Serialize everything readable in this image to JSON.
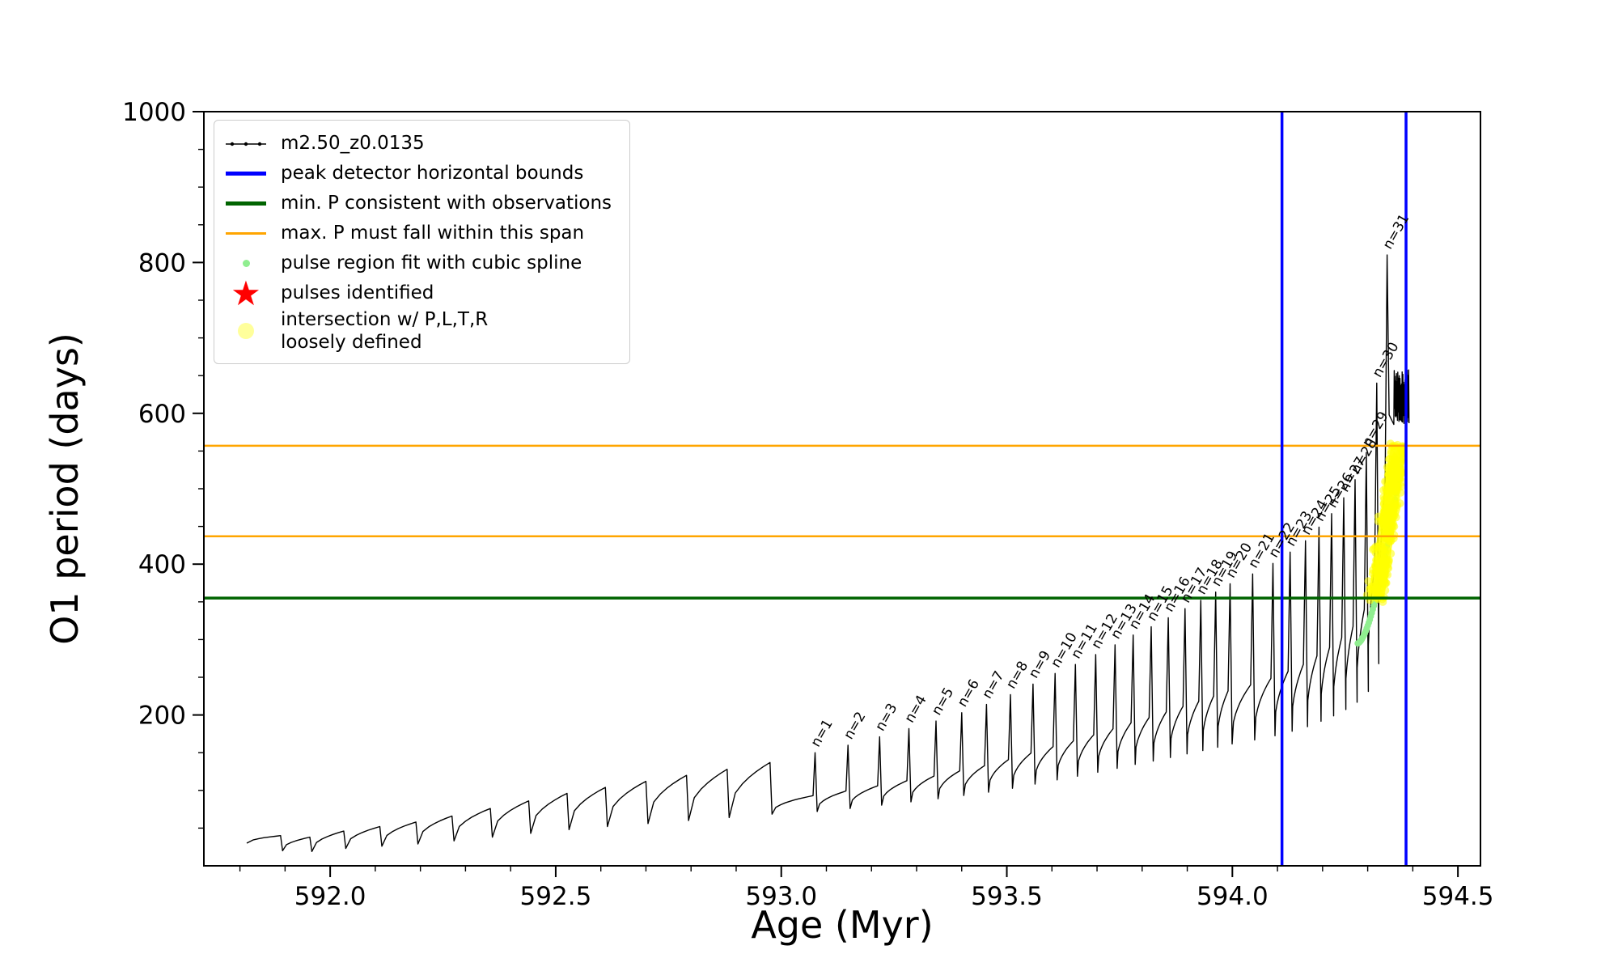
{
  "chart_data": {
    "type": "line",
    "title": "",
    "xlabel": "Age (Myr)",
    "ylabel": "O1 period (days)",
    "xlim": [
      591.72,
      594.55
    ],
    "ylim": [
      0,
      1000
    ],
    "grid": false,
    "xticks": {
      "values": [
        592.0,
        592.5,
        593.0,
        593.5,
        594.0,
        594.5
      ],
      "labels": [
        "592.0",
        "592.5",
        "593.0",
        "593.5",
        "594.0",
        "594.5"
      ],
      "minor_step": 0.1
    },
    "yticks": {
      "values": [
        200,
        400,
        600,
        800,
        1000
      ],
      "labels": [
        "200",
        "400",
        "600",
        "800",
        "1000"
      ],
      "minor_step": 50
    },
    "series": [
      {
        "name": "m2.50_z0.0135",
        "color": "#000000",
        "start": {
          "x": 591.815,
          "y": 30
        },
        "pre_pulses": [
          {
            "x": 591.89,
            "peak": 40
          },
          {
            "x": 591.955,
            "peak": 38
          },
          {
            "x": 592.03,
            "peak": 46
          },
          {
            "x": 592.11,
            "peak": 52
          },
          {
            "x": 592.19,
            "peak": 58
          },
          {
            "x": 592.27,
            "peak": 66
          },
          {
            "x": 592.355,
            "peak": 76
          },
          {
            "x": 592.44,
            "peak": 86
          },
          {
            "x": 592.525,
            "peak": 96
          },
          {
            "x": 592.61,
            "peak": 104
          },
          {
            "x": 592.7,
            "peak": 112
          },
          {
            "x": 592.79,
            "peak": 120
          },
          {
            "x": 592.88,
            "peak": 128
          },
          {
            "x": 592.975,
            "peak": 137
          }
        ],
        "pulses": [
          {
            "label": "n=1",
            "x": 593.075,
            "peak": 150
          },
          {
            "label": "n=2",
            "x": 593.148,
            "peak": 160
          },
          {
            "label": "n=3",
            "x": 593.218,
            "peak": 171
          },
          {
            "label": "n=4",
            "x": 593.283,
            "peak": 182
          },
          {
            "label": "n=5",
            "x": 593.343,
            "peak": 192
          },
          {
            "label": "n=6",
            "x": 593.4,
            "peak": 203
          },
          {
            "label": "n=7",
            "x": 593.455,
            "peak": 214
          },
          {
            "label": "n=8",
            "x": 593.508,
            "peak": 227
          },
          {
            "label": "n=9",
            "x": 593.558,
            "peak": 241
          },
          {
            "label": "n=10",
            "x": 593.607,
            "peak": 255
          },
          {
            "label": "n=11",
            "x": 593.652,
            "peak": 267
          },
          {
            "label": "n=12",
            "x": 593.697,
            "peak": 280
          },
          {
            "label": "n=13",
            "x": 593.74,
            "peak": 293
          },
          {
            "label": "n=14",
            "x": 593.78,
            "peak": 306
          },
          {
            "label": "n=15",
            "x": 593.82,
            "peak": 317
          },
          {
            "label": "n=16",
            "x": 593.858,
            "peak": 329
          },
          {
            "label": "n=17",
            "x": 593.895,
            "peak": 341
          },
          {
            "label": "n=18",
            "x": 593.93,
            "peak": 352
          },
          {
            "label": "n=19",
            "x": 593.963,
            "peak": 363
          },
          {
            "label": "n=20",
            "x": 593.995,
            "peak": 374
          },
          {
            "label": "n=21",
            "x": 594.045,
            "peak": 387
          },
          {
            "label": "n=22",
            "x": 594.09,
            "peak": 401
          },
          {
            "label": "n=23",
            "x": 594.128,
            "peak": 416
          },
          {
            "label": "n=24",
            "x": 594.162,
            "peak": 431
          },
          {
            "label": "n=25",
            "x": 594.192,
            "peak": 449
          },
          {
            "label": "n=26",
            "x": 594.22,
            "peak": 467
          },
          {
            "label": "n=27",
            "x": 594.247,
            "peak": 488
          },
          {
            "label": "n=28",
            "x": 594.272,
            "peak": 512
          },
          {
            "label": "n=29",
            "x": 594.297,
            "peak": 548
          },
          {
            "label": "n=30",
            "x": 594.32,
            "peak": 640
          },
          {
            "label": "n=31",
            "x": 594.343,
            "peak": 810
          }
        ],
        "tail_oscillation": {
          "x_start": 594.358,
          "x_end": 594.392,
          "y_low": 585,
          "y_high": 658
        }
      }
    ],
    "overlays": {
      "blue_vlines": {
        "x": [
          594.11,
          594.385
        ],
        "color": "#0000ff"
      },
      "green_hline": {
        "y": 355,
        "color": "#006400"
      },
      "orange_hlines": {
        "y": [
          437,
          557
        ],
        "color": "#ffa500"
      },
      "spline_dots": {
        "color": "#90ee90",
        "x_start": 594.278,
        "x_end": 594.378,
        "y_start": 295,
        "y_end": 556,
        "count": 46
      },
      "pulse_stars": {
        "color": "#ff0000",
        "points": []
      },
      "intersection_region": {
        "color": "#ffff00",
        "dot_count": 300,
        "polygon": [
          [
            594.3,
            352
          ],
          [
            594.336,
            352
          ],
          [
            594.388,
            560
          ],
          [
            594.352,
            560
          ]
        ]
      }
    }
  },
  "legend": {
    "items": [
      {
        "swatch": "line-dots",
        "color": "#000000",
        "label": "m2.50_z0.0135"
      },
      {
        "swatch": "line-thick",
        "color": "#0000ff",
        "label": "peak detector horizontal bounds"
      },
      {
        "swatch": "line-thick",
        "color": "#006400",
        "label": "min. P consistent with observations"
      },
      {
        "swatch": "line",
        "color": "#ffa500",
        "label": "max. P must fall within this span"
      },
      {
        "swatch": "dot-small",
        "color": "#90ee90",
        "label": "pulse region fit with cubic spline"
      },
      {
        "swatch": "star",
        "color": "#ff0000",
        "label": "pulses identified"
      },
      {
        "swatch": "dot-large",
        "color": "#ffff66",
        "label": "intersection w/ P,L,T,R\nloosely defined"
      }
    ]
  }
}
